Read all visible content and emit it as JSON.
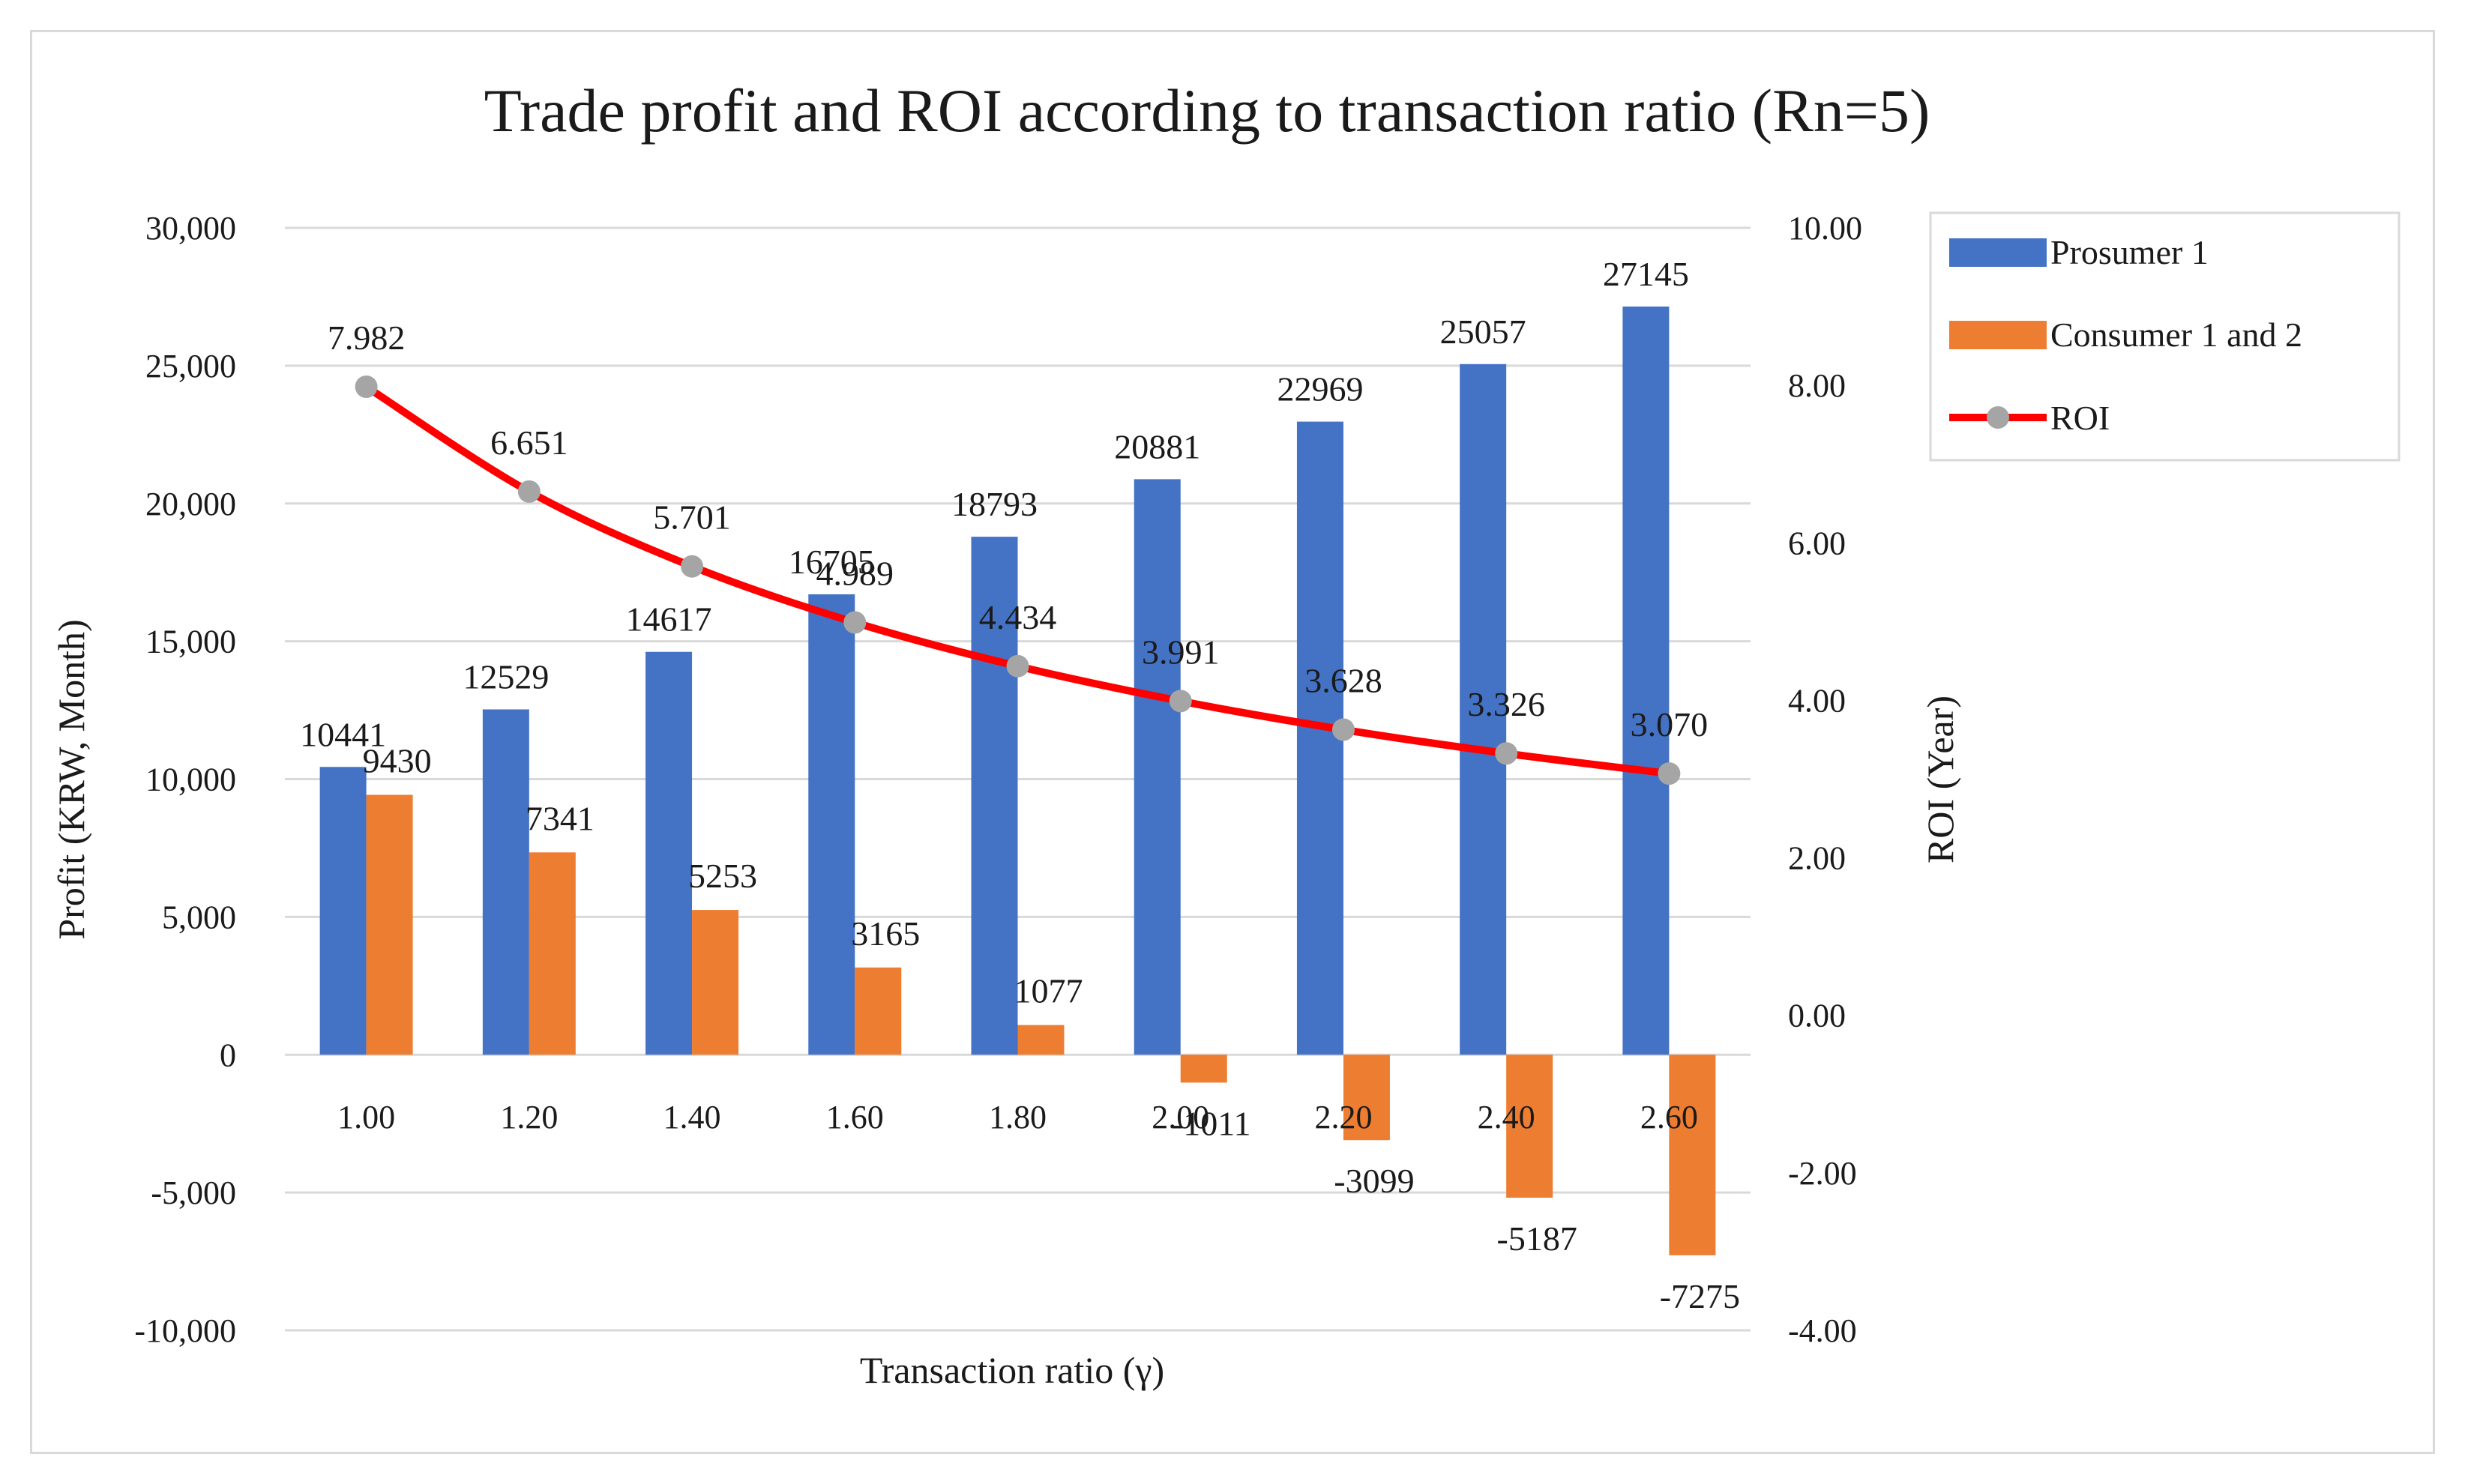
{
  "chart_data": {
    "type": "bar",
    "title": "Trade profit and ROI according to transaction ratio (Rn=5)",
    "xlabel": "Transaction ratio (γ)",
    "ylabel": "Profit (KRW, Month)",
    "y2label": "ROI (Year)",
    "categories": [
      "1.00",
      "1.20",
      "1.40",
      "1.60",
      "1.80",
      "2.00",
      "2.20",
      "2.40",
      "2.60"
    ],
    "ylim": [
      -10000,
      30000
    ],
    "yticks": [
      -10000,
      -5000,
      0,
      5000,
      10000,
      15000,
      20000,
      25000,
      30000
    ],
    "ytick_labels": [
      "-10,000",
      "-5,000",
      "0",
      "5,000",
      "10,000",
      "15,000",
      "20,000",
      "25,000",
      "30,000"
    ],
    "y2lim": [
      -4,
      10
    ],
    "y2ticks": [
      -4,
      -2,
      0,
      2,
      4,
      6,
      8,
      10
    ],
    "y2tick_labels": [
      "-4.00",
      "-2.00",
      "0.00",
      "2.00",
      "4.00",
      "6.00",
      "8.00",
      "10.00"
    ],
    "grid": true,
    "legend_position": "top-right",
    "series": [
      {
        "name": "Prosumer 1",
        "type": "bar",
        "axis": "left",
        "color": "#4472c4",
        "values": [
          10441,
          12529,
          14617,
          16705,
          18793,
          20881,
          22969,
          25057,
          27145
        ],
        "labels": [
          "10441",
          "12529",
          "14617",
          "16705",
          "18793",
          "20881",
          "22969",
          "25057",
          "27145"
        ]
      },
      {
        "name": "Consumer 1 and 2",
        "type": "bar",
        "axis": "left",
        "color": "#ed7d31",
        "values": [
          9430,
          7341,
          5253,
          3165,
          1077,
          -1011,
          -3099,
          -5187,
          -7275
        ],
        "labels": [
          "9430",
          "7341",
          "5253",
          "3165",
          "1077",
          "-1011",
          "-3099",
          "-5187",
          "-7275"
        ]
      },
      {
        "name": "ROI",
        "type": "line",
        "axis": "right",
        "color": "#ff0000",
        "marker_color": "#a5a5a5",
        "values": [
          7.982,
          6.651,
          5.701,
          4.989,
          4.434,
          3.991,
          3.628,
          3.326,
          3.07
        ],
        "labels": [
          "7.982",
          "6.651",
          "5.701",
          "4.989",
          "4.434",
          "3.991",
          "3.628",
          "3.326",
          "3.070"
        ]
      }
    ],
    "gridline_color": "#d9d9d9"
  }
}
